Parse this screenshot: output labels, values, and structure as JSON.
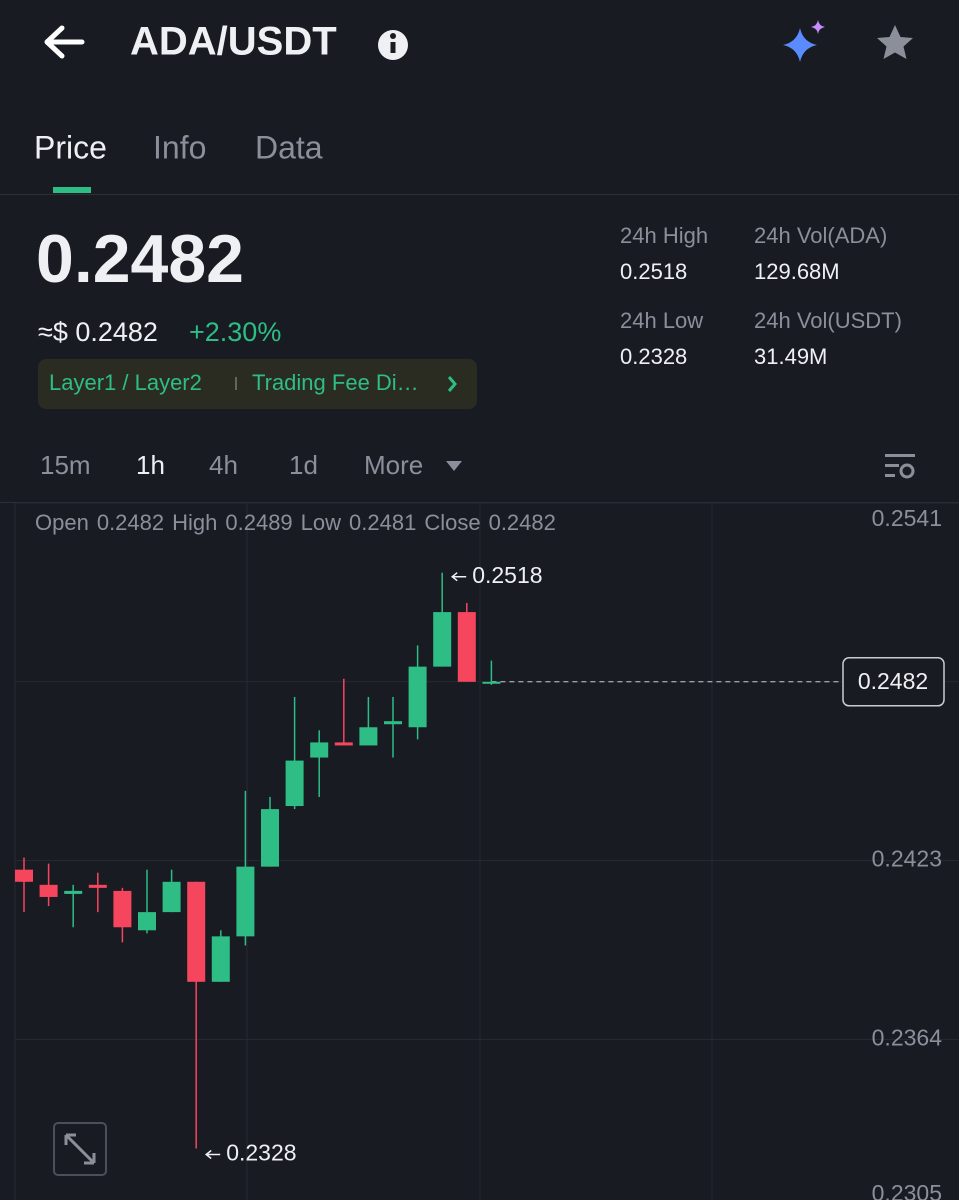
{
  "header": {
    "pair": "ADA/USDT"
  },
  "tabs": [
    "Price",
    "Info",
    "Data"
  ],
  "summary": {
    "price": "0.2482",
    "usd_price": "≈$ 0.2482",
    "change": "+2.30%",
    "tags": [
      "Layer1 / Layer2",
      "Trading Fee Di…"
    ],
    "stats": [
      {
        "label": "24h High",
        "value": "0.2518"
      },
      {
        "label": "24h Vol(ADA)",
        "value": "129.68M"
      },
      {
        "label": "24h Low",
        "value": "0.2328"
      },
      {
        "label": "24h Vol(USDT)",
        "value": "31.49M"
      }
    ]
  },
  "intervals": [
    "15m",
    "1h",
    "4h",
    "1d",
    "More"
  ],
  "chart_data": {
    "type": "candlestick",
    "ohlc_labels": [
      "Open",
      "High",
      "Low",
      "Close"
    ],
    "categories": [
      null,
      null,
      null,
      null,
      null,
      null,
      null,
      null,
      null,
      null,
      null,
      null,
      null,
      null,
      null,
      null,
      null,
      null,
      null,
      null
    ],
    "open": [
      0.242,
      0.2415,
      0.2412,
      0.2415,
      0.2413,
      0.24,
      0.2406,
      0.2416,
      0.2383,
      0.2398,
      0.2421,
      0.2441,
      0.2457,
      0.2462,
      0.2461,
      0.2468,
      0.2467,
      0.2487,
      0.2505,
      0.2482
    ],
    "high": [
      0.2424,
      0.2422,
      0.2415,
      0.2419,
      0.2414,
      0.242,
      0.242,
      0.2416,
      0.24,
      0.2446,
      0.2444,
      0.2477,
      0.2466,
      0.2483,
      0.2477,
      0.2477,
      0.2494,
      0.2518,
      0.2508,
      0.2489
    ],
    "low": [
      0.2406,
      0.2408,
      0.2401,
      0.2406,
      0.2396,
      0.2399,
      0.2406,
      0.2328,
      0.2383,
      0.2395,
      0.2421,
      0.244,
      0.2444,
      0.2461,
      0.2461,
      0.2457,
      0.2463,
      0.2487,
      0.2482,
      0.2481
    ],
    "close": [
      0.2416,
      0.2411,
      0.2413,
      0.2414,
      0.2401,
      0.2406,
      0.2416,
      0.2383,
      0.2398,
      0.2421,
      0.244,
      0.2456,
      0.2462,
      0.2461,
      0.2467,
      0.2469,
      0.2487,
      0.2505,
      0.2482,
      0.2482
    ],
    "up_color": "#2ebd85",
    "down_color": "#f6465d",
    "ylim": [
      0.2311,
      0.2541
    ],
    "yticks": [
      0.2541,
      0.2482,
      0.2423,
      0.2364,
      0.2305
    ],
    "grid": true
  }
}
